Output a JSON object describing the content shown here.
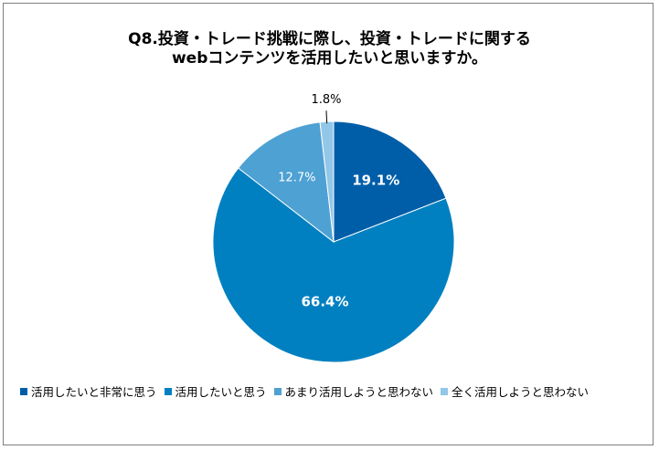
{
  "chart_data": {
    "type": "pie",
    "title_lines": [
      "Q8.投資・トレード挑戦に際し、投資・トレードに関する",
      "webコンテンツを活用したいと思いますか。"
    ],
    "slices": [
      {
        "label": "活用したいと非常に思う",
        "value": 19.1,
        "value_label": "19.1%",
        "color": "#005ea8"
      },
      {
        "label": "活用したいと思う",
        "value": 66.4,
        "value_label": "66.4%",
        "color": "#0080c0"
      },
      {
        "label": "あまり活用しようと思わない",
        "value": 12.7,
        "value_label": "12.7%",
        "color": "#4ea1d3"
      },
      {
        "label": "全く活用しようと思わない",
        "value": 1.8,
        "value_label": "1.8%",
        "color": "#92c7e8"
      }
    ],
    "legend_position": "bottom"
  }
}
